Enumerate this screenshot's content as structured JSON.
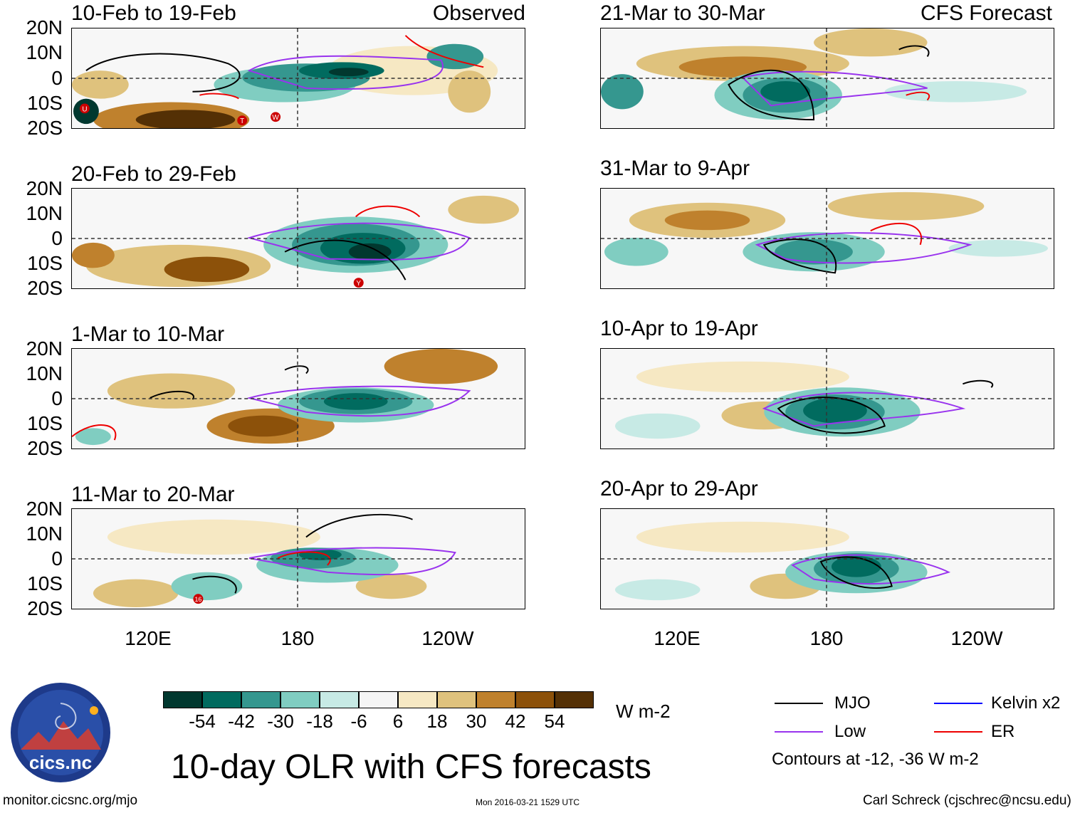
{
  "panels": [
    {
      "title": "10-Feb to 19-Feb",
      "label": "Observed"
    },
    {
      "title": "20-Feb to 29-Feb"
    },
    {
      "title": "1-Mar to 10-Mar"
    },
    {
      "title": "11-Mar to 20-Mar"
    },
    {
      "title": "21-Mar to 30-Mar",
      "label": "CFS Forecast"
    },
    {
      "title": "31-Mar to 9-Apr"
    },
    {
      "title": "10-Apr to 19-Apr"
    },
    {
      "title": "20-Apr to 29-Apr"
    }
  ],
  "storm_markers": [
    "U",
    "T",
    "W",
    "Y",
    "16"
  ],
  "lat_labels": [
    "20N",
    "10N",
    "0",
    "10S",
    "20S"
  ],
  "lon_labels": [
    "120E",
    "180",
    "120W"
  ],
  "colorbar": {
    "colors": [
      "#01382f",
      "#016b5f",
      "#35978f",
      "#80cdc1",
      "#c7eae5",
      "#f5f5f5",
      "#f6e8c3",
      "#dfc27d",
      "#bf812d",
      "#8c510a",
      "#543005"
    ],
    "labels": [
      "-54",
      "-42",
      "-30",
      "-18",
      "-6",
      "6",
      "18",
      "30",
      "42",
      "54"
    ],
    "units": "W m-2"
  },
  "legend": {
    "items": [
      {
        "name": "MJO",
        "color": "#000000"
      },
      {
        "name": "Kelvin x2",
        "color": "#0000ff"
      },
      {
        "name": "Low",
        "color": "#9933ee"
      },
      {
        "name": "ER",
        "color": "#ee0000"
      }
    ],
    "contours_note": "Contours at -12, -36 W m-2"
  },
  "logo_text": "cics.nc",
  "main_title": "10-day OLR with CFS forecasts",
  "footer": {
    "url": "monitor.cicsnc.org/mjo",
    "timestamp": "Mon 2016-03-21 1529 UTC",
    "author": "Carl Schreck (cjschrec@ncsu.edu)"
  }
}
